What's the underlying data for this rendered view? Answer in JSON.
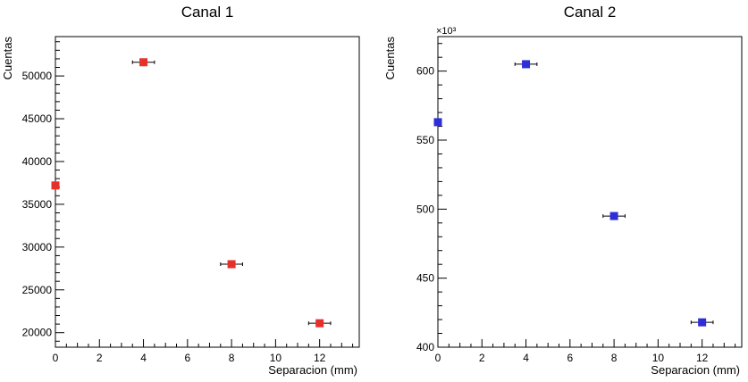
{
  "chart_data": [
    {
      "type": "scatter",
      "title": "Canal 1",
      "xlabel": "Separacion (mm)",
      "ylabel": "Cuentas",
      "multiplier": "",
      "xlim": [
        0,
        13.8
      ],
      "ylim": [
        18300,
        54600
      ],
      "xticks": [
        0,
        2,
        4,
        6,
        8,
        10,
        12
      ],
      "yticks": [
        20000,
        25000,
        30000,
        35000,
        40000,
        45000,
        50000
      ],
      "yticklabels": [
        "20000",
        "25000",
        "30000",
        "35000",
        "40000",
        "45000",
        "50000"
      ],
      "marker_color": "#e8302a",
      "points": [
        {
          "x": 0,
          "y": 37200,
          "xerr": 0
        },
        {
          "x": 4,
          "y": 51600,
          "xerr": 0.5
        },
        {
          "x": 8,
          "y": 28000,
          "xerr": 0.5
        },
        {
          "x": 12,
          "y": 21100,
          "xerr": 0.5
        }
      ]
    },
    {
      "type": "scatter",
      "title": "Canal 2",
      "xlabel": "Separacion (mm)",
      "ylabel": "Cuentas",
      "multiplier": "×10³",
      "xlim": [
        0,
        13.8
      ],
      "ylim": [
        400000,
        625000
      ],
      "xticks": [
        0,
        2,
        4,
        6,
        8,
        10,
        12
      ],
      "yticks": [
        400000,
        450000,
        500000,
        550000,
        600000
      ],
      "yticklabels": [
        "400",
        "450",
        "500",
        "550",
        "600"
      ],
      "marker_color": "#2e2ed8",
      "points": [
        {
          "x": 0,
          "y": 563000,
          "xerr": 0
        },
        {
          "x": 4,
          "y": 605000,
          "xerr": 0.5
        },
        {
          "x": 8,
          "y": 495000,
          "xerr": 0.5
        },
        {
          "x": 12,
          "y": 418000,
          "xerr": 0.5
        }
      ]
    }
  ]
}
